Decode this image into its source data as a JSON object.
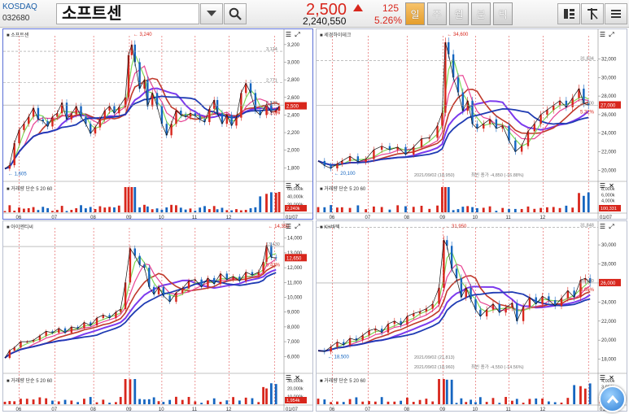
{
  "header": {
    "market": "KOSDAQ",
    "code": "032680",
    "name": "소프트센",
    "price": "2,500",
    "volume": "2,240,550",
    "change": "125",
    "change_rate": "5.26%",
    "period_tabs": [
      "일",
      "주",
      "월",
      "분",
      "틱"
    ],
    "active_tab": "일"
  },
  "colors": {
    "up": "#d8261c",
    "down": "#1565c0",
    "accent": "#e59e2c"
  },
  "panels": [
    {
      "title": "소프트센",
      "yticks": [
        "3,200",
        "3,000",
        "2,800",
        "2,600",
        "2,400",
        "2,200",
        "2,000",
        "1,800"
      ],
      "ymin": 1720,
      "ymax": 3300,
      "peak_label": "3,240",
      "low_label": "1,605",
      "ref_labels": [
        "3,124",
        "2,771",
        "2,513"
      ],
      "price_box": "2,500",
      "rate_box": "5.26%",
      "vol_label": "거래량 단순 5 20 60",
      "vol_ticks": [
        "60,000k",
        "40,000k",
        "20,000k"
      ],
      "vol_box": "2,240k",
      "months": [
        "06",
        "07",
        "08",
        "09",
        "10",
        "11",
        "12",
        "01/07"
      ],
      "points": [
        [
          0,
          1790
        ],
        [
          6,
          1830
        ],
        [
          12,
          2080
        ],
        [
          18,
          2230
        ],
        [
          24,
          2300
        ],
        [
          30,
          2380
        ],
        [
          36,
          2480
        ],
        [
          42,
          2350
        ],
        [
          48,
          2330
        ],
        [
          54,
          2270
        ],
        [
          60,
          2380
        ],
        [
          66,
          2420
        ],
        [
          72,
          2540
        ],
        [
          78,
          2350
        ],
        [
          84,
          2410
        ],
        [
          90,
          2500
        ],
        [
          96,
          2380
        ],
        [
          102,
          2300
        ],
        [
          108,
          2190
        ],
        [
          114,
          2260
        ],
        [
          120,
          2350
        ],
        [
          126,
          2450
        ],
        [
          132,
          2500
        ],
        [
          138,
          2420
        ],
        [
          144,
          2490
        ],
        [
          152,
          2600
        ],
        [
          156,
          3080
        ],
        [
          160,
          3200
        ],
        [
          164,
          3000
        ],
        [
          170,
          2700
        ],
        [
          176,
          2800
        ],
        [
          180,
          2500
        ],
        [
          186,
          2650
        ],
        [
          192,
          2500
        ],
        [
          198,
          2300
        ],
        [
          204,
          2170
        ],
        [
          210,
          2300
        ],
        [
          216,
          2450
        ],
        [
          222,
          2400
        ],
        [
          228,
          2380
        ],
        [
          234,
          2420
        ],
        [
          240,
          2390
        ],
        [
          246,
          2350
        ],
        [
          252,
          2320
        ],
        [
          258,
          2470
        ],
        [
          264,
          2570
        ],
        [
          268,
          2420
        ],
        [
          274,
          2300
        ],
        [
          280,
          2400
        ],
        [
          286,
          2280
        ],
        [
          292,
          2370
        ],
        [
          298,
          2650
        ],
        [
          304,
          2760
        ],
        [
          310,
          2650
        ],
        [
          316,
          2450
        ],
        [
          322,
          2400
        ],
        [
          330,
          2520
        ],
        [
          336,
          2430
        ],
        [
          342,
          2450
        ],
        [
          346,
          2500
        ]
      ]
    },
    {
      "title": "세경하이테크",
      "yticks": [
        "32,000",
        "30,000",
        "28,000",
        "26,000",
        "24,000",
        "22,000",
        "20,000"
      ],
      "ymin": 19500,
      "ymax": 34500,
      "peak_label": "34,600",
      "low_label": "20,100",
      "ref_labels": [
        "31,834",
        "27,000"
      ],
      "annotations": [
        "2021/09/02 (18,950)",
        "최빈 종가 -4,850 (-16.88%)"
      ],
      "price_box": "27,000",
      "rate_box": "5.32%",
      "vol_label": "거래량 단순 5 20 60",
      "vol_ticks": [
        "8,000k",
        "6,000k",
        "4,000k",
        "2,000k"
      ],
      "vol_box": "100,331",
      "months": [
        "06",
        "07",
        "08",
        "09",
        "10",
        "11",
        "12",
        "01/07"
      ],
      "points": [
        [
          0,
          21000
        ],
        [
          8,
          20500
        ],
        [
          16,
          20200
        ],
        [
          24,
          20700
        ],
        [
          30,
          21000
        ],
        [
          40,
          21500
        ],
        [
          50,
          20900
        ],
        [
          60,
          21200
        ],
        [
          70,
          22200
        ],
        [
          80,
          22600
        ],
        [
          90,
          22200
        ],
        [
          100,
          22500
        ],
        [
          110,
          21700
        ],
        [
          120,
          22500
        ],
        [
          130,
          23400
        ],
        [
          140,
          23500
        ],
        [
          150,
          24800
        ],
        [
          156,
          26200
        ],
        [
          160,
          33800
        ],
        [
          164,
          32500
        ],
        [
          170,
          30000
        ],
        [
          176,
          28400
        ],
        [
          182,
          26400
        ],
        [
          188,
          27500
        ],
        [
          194,
          25000
        ],
        [
          200,
          24500
        ],
        [
          208,
          25000
        ],
        [
          216,
          25500
        ],
        [
          224,
          24500
        ],
        [
          232,
          24800
        ],
        [
          240,
          23200
        ],
        [
          248,
          22000
        ],
        [
          256,
          22600
        ],
        [
          264,
          24200
        ],
        [
          272,
          25000
        ],
        [
          280,
          26000
        ],
        [
          288,
          26500
        ],
        [
          296,
          27000
        ],
        [
          304,
          27500
        ],
        [
          312,
          26800
        ],
        [
          320,
          27800
        ],
        [
          328,
          28800
        ],
        [
          334,
          27200
        ],
        [
          340,
          27000
        ]
      ]
    },
    {
      "title": "아이엔티씨",
      "yticks": [
        "14,000",
        "13,000",
        "12,000",
        "11,000",
        "10,000",
        "9,000",
        "8,000",
        "7,000",
        "6,000"
      ],
      "ymin": 5300,
      "ymax": 14700,
      "peak_label": "14,350",
      "ref_labels": [
        "13,430"
      ],
      "price_box": "12,650",
      "rate_box": "5.42%",
      "vol_label": "거래량 단순 5 20 60",
      "vol_ticks": [
        "30,000k",
        "20,000k",
        "10,000k"
      ],
      "vol_box": "1,954k",
      "months": [
        "06",
        "07",
        "08",
        "09",
        "10",
        "11",
        "12",
        "01/07"
      ],
      "points": [
        [
          0,
          5900
        ],
        [
          6,
          6400
        ],
        [
          12,
          6600
        ],
        [
          20,
          7000
        ],
        [
          28,
          7000
        ],
        [
          36,
          7100
        ],
        [
          44,
          7400
        ],
        [
          52,
          7700
        ],
        [
          60,
          7600
        ],
        [
          68,
          7900
        ],
        [
          76,
          7600
        ],
        [
          84,
          8000
        ],
        [
          92,
          7900
        ],
        [
          100,
          8300
        ],
        [
          108,
          8100
        ],
        [
          116,
          8600
        ],
        [
          124,
          8800
        ],
        [
          132,
          8600
        ],
        [
          140,
          9000
        ],
        [
          146,
          9200
        ],
        [
          152,
          11000
        ],
        [
          158,
          13300
        ],
        [
          164,
          12800
        ],
        [
          170,
          12200
        ],
        [
          176,
          12000
        ],
        [
          182,
          10700
        ],
        [
          188,
          10200
        ],
        [
          194,
          10700
        ],
        [
          200,
          10100
        ],
        [
          208,
          9700
        ],
        [
          216,
          10300
        ],
        [
          224,
          10600
        ],
        [
          232,
          11100
        ],
        [
          240,
          11200
        ],
        [
          248,
          10700
        ],
        [
          256,
          11300
        ],
        [
          264,
          10900
        ],
        [
          272,
          11600
        ],
        [
          280,
          11200
        ],
        [
          288,
          11400
        ],
        [
          296,
          11100
        ],
        [
          304,
          11700
        ],
        [
          312,
          11500
        ],
        [
          320,
          11700
        ],
        [
          326,
          12400
        ],
        [
          330,
          13500
        ],
        [
          336,
          12700
        ],
        [
          342,
          12650
        ]
      ]
    },
    {
      "title": "KH바텍",
      "yticks": [
        "30,000",
        "28,000",
        "26,000",
        "24,000",
        "22,000",
        "20,000",
        "18,000"
      ],
      "ymin": 17200,
      "ymax": 31800,
      "peak_label": "31,950",
      "low_label": "18,500",
      "ref_labels": [
        "31,848",
        "26,000"
      ],
      "annotations": [
        "2021/09/02 (18,960)",
        "최빈 종가 -4,550 (-14.56%)",
        "2021/09/02 (21,813)"
      ],
      "price_box": "26,000",
      "rate_box": "3.86%",
      "vol_label": "거래량 단순 5 20 60",
      "vol_ticks": [
        "4,000k",
        "3,000k",
        "2,000k",
        "1,000k"
      ],
      "vol_box": "4",
      "months": [
        "06",
        "07",
        "08",
        "09",
        "10",
        "11",
        "12",
        "01/07"
      ],
      "points": [
        [
          0,
          18900
        ],
        [
          8,
          18800
        ],
        [
          16,
          19300
        ],
        [
          24,
          19800
        ],
        [
          32,
          19500
        ],
        [
          40,
          20200
        ],
        [
          48,
          20000
        ],
        [
          56,
          20500
        ],
        [
          64,
          21000
        ],
        [
          72,
          21200
        ],
        [
          80,
          20800
        ],
        [
          88,
          21700
        ],
        [
          96,
          22000
        ],
        [
          104,
          21600
        ],
        [
          112,
          22500
        ],
        [
          120,
          22800
        ],
        [
          128,
          23000
        ],
        [
          136,
          23300
        ],
        [
          144,
          23800
        ],
        [
          152,
          25500
        ],
        [
          158,
          30500
        ],
        [
          162,
          29900
        ],
        [
          168,
          27500
        ],
        [
          174,
          26500
        ],
        [
          180,
          24500
        ],
        [
          186,
          25500
        ],
        [
          192,
          24300
        ],
        [
          198,
          23200
        ],
        [
          204,
          22500
        ],
        [
          212,
          23200
        ],
        [
          220,
          23800
        ],
        [
          228,
          22900
        ],
        [
          236,
          23400
        ],
        [
          244,
          23900
        ],
        [
          250,
          22000
        ],
        [
          258,
          23500
        ],
        [
          266,
          24500
        ],
        [
          274,
          23800
        ],
        [
          282,
          24600
        ],
        [
          290,
          24200
        ],
        [
          298,
          23600
        ],
        [
          306,
          24400
        ],
        [
          314,
          25200
        ],
        [
          322,
          24500
        ],
        [
          330,
          26300
        ],
        [
          336,
          26500
        ],
        [
          342,
          26000
        ]
      ]
    }
  ]
}
